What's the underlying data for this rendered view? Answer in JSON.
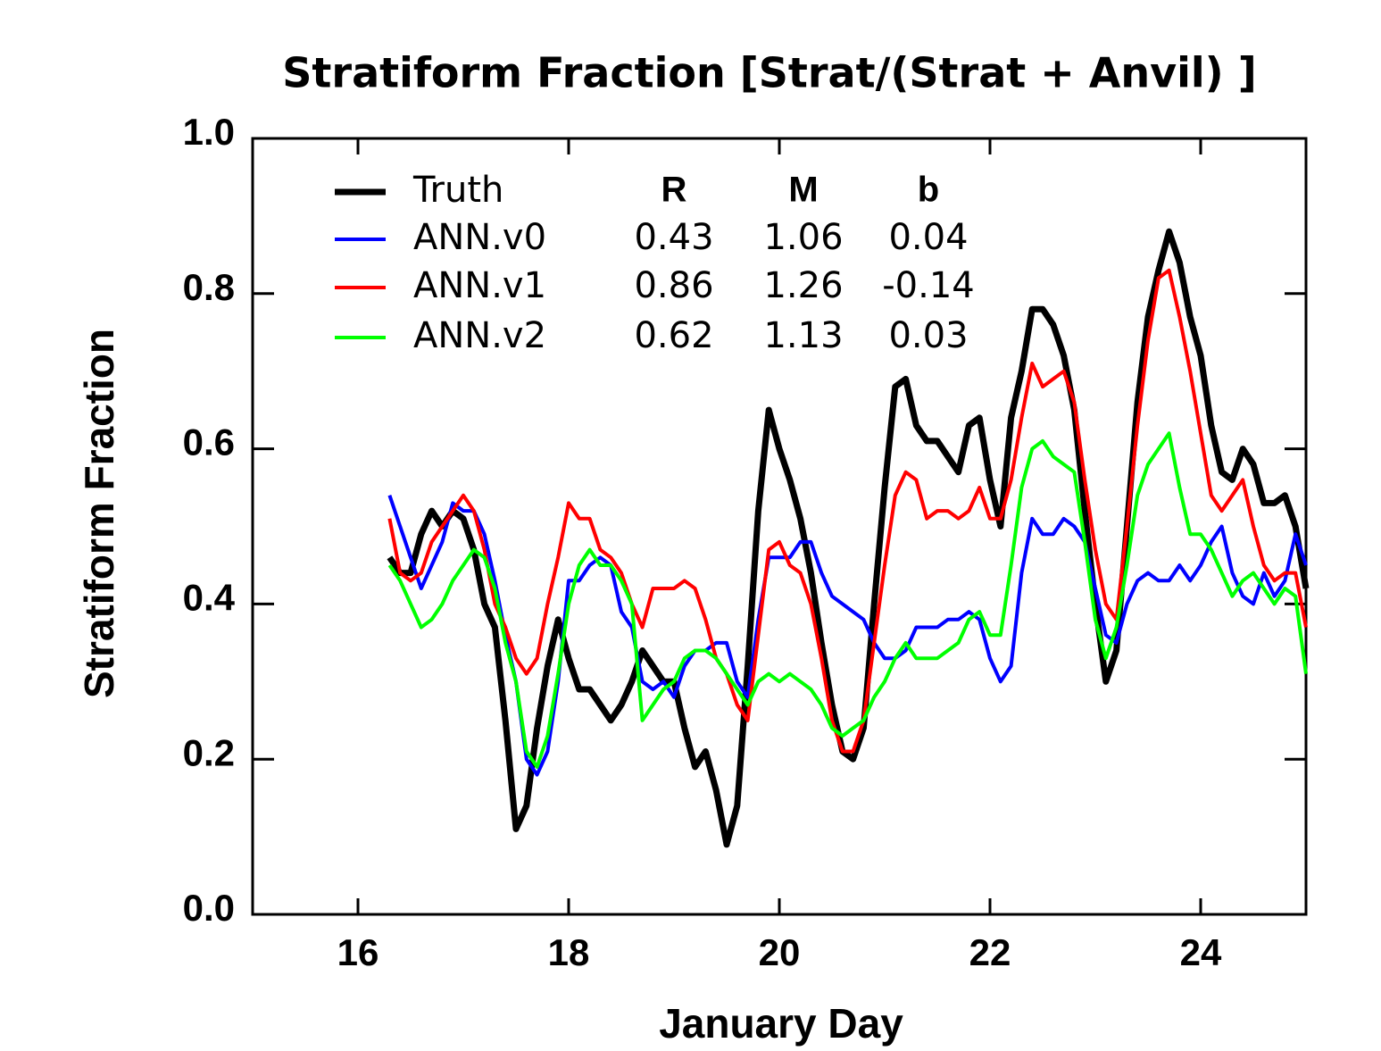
{
  "chart_data": {
    "type": "line",
    "title": "Stratiform Fraction  [Strat/(Strat + Anvil) ]",
    "xlabel": "January Day",
    "ylabel": "Stratiform Fraction",
    "xlim": [
      15,
      25
    ],
    "ylim": [
      0,
      1
    ],
    "xticks": [
      16,
      18,
      20,
      22,
      24
    ],
    "yticks": [
      {
        "value": 0,
        "label": "0.0"
      },
      0.2,
      0.4,
      0.6,
      0.8,
      {
        "value": 1,
        "label": "1.0"
      }
    ],
    "legend_columns": [
      "R",
      "M",
      "b"
    ],
    "legend_position": "upper left",
    "x": [
      16.3,
      16.4,
      16.5,
      16.6,
      16.7,
      16.8,
      16.9,
      17.0,
      17.1,
      17.2,
      17.3,
      17.4,
      17.5,
      17.6,
      17.7,
      17.8,
      17.9,
      18.0,
      18.1,
      18.2,
      18.3,
      18.4,
      18.5,
      18.6,
      18.7,
      18.8,
      18.9,
      19.0,
      19.1,
      19.2,
      19.3,
      19.4,
      19.5,
      19.6,
      19.7,
      19.8,
      19.9,
      20.0,
      20.1,
      20.2,
      20.3,
      20.4,
      20.5,
      20.6,
      20.7,
      20.8,
      20.9,
      21.0,
      21.1,
      21.2,
      21.3,
      21.4,
      21.5,
      21.6,
      21.7,
      21.8,
      21.9,
      22.0,
      22.1,
      22.2,
      22.3,
      22.4,
      22.5,
      22.6,
      22.7,
      22.8,
      22.9,
      23.0,
      23.1,
      23.2,
      23.3,
      23.4,
      23.5,
      23.6,
      23.7,
      23.8,
      23.9,
      24.0,
      24.1,
      24.2,
      24.3,
      24.4,
      24.5,
      24.6,
      24.7,
      24.8,
      24.9,
      25.0
    ],
    "series": [
      {
        "name": "Truth",
        "color": "#000000",
        "width": 7,
        "values": [
          0.46,
          0.44,
          0.44,
          0.49,
          0.52,
          0.5,
          0.52,
          0.51,
          0.47,
          0.4,
          0.37,
          0.25,
          0.11,
          0.14,
          0.24,
          0.32,
          0.38,
          0.33,
          0.29,
          0.29,
          0.27,
          0.25,
          0.27,
          0.3,
          0.34,
          0.32,
          0.3,
          0.3,
          0.24,
          0.19,
          0.21,
          0.16,
          0.09,
          0.14,
          0.32,
          0.52,
          0.65,
          0.6,
          0.56,
          0.51,
          0.44,
          0.35,
          0.27,
          0.21,
          0.2,
          0.24,
          0.4,
          0.55,
          0.68,
          0.69,
          0.63,
          0.61,
          0.61,
          0.59,
          0.57,
          0.63,
          0.64,
          0.56,
          0.5,
          0.64,
          0.7,
          0.78,
          0.78,
          0.76,
          0.72,
          0.65,
          0.52,
          0.4,
          0.3,
          0.34,
          0.5,
          0.66,
          0.77,
          0.83,
          0.88,
          0.84,
          0.77,
          0.72,
          0.63,
          0.57,
          0.56,
          0.6,
          0.58,
          0.53,
          0.53,
          0.54,
          0.5,
          0.42
        ]
      },
      {
        "name": "ANN.v0",
        "color": "#0000ff",
        "width": 4,
        "stats": [
          0.43,
          1.06,
          0.04
        ],
        "values": [
          0.54,
          0.5,
          0.46,
          0.42,
          0.45,
          0.48,
          0.53,
          0.52,
          0.52,
          0.49,
          0.43,
          0.36,
          0.3,
          0.2,
          0.18,
          0.21,
          0.3,
          0.43,
          0.43,
          0.45,
          0.46,
          0.45,
          0.39,
          0.37,
          0.3,
          0.29,
          0.3,
          0.28,
          0.32,
          0.34,
          0.34,
          0.35,
          0.35,
          0.3,
          0.28,
          0.38,
          0.46,
          0.46,
          0.46,
          0.48,
          0.48,
          0.44,
          0.41,
          0.4,
          0.39,
          0.38,
          0.35,
          0.33,
          0.33,
          0.34,
          0.37,
          0.37,
          0.37,
          0.38,
          0.38,
          0.39,
          0.38,
          0.33,
          0.3,
          0.32,
          0.44,
          0.51,
          0.49,
          0.49,
          0.51,
          0.5,
          0.48,
          0.42,
          0.36,
          0.35,
          0.4,
          0.43,
          0.44,
          0.43,
          0.43,
          0.45,
          0.43,
          0.45,
          0.48,
          0.5,
          0.44,
          0.41,
          0.4,
          0.44,
          0.41,
          0.43,
          0.49,
          0.45
        ]
      },
      {
        "name": "ANN.v1",
        "color": "#ff0000",
        "width": 4,
        "stats": [
          0.86,
          1.26,
          -0.14
        ],
        "values": [
          0.51,
          0.44,
          0.43,
          0.44,
          0.48,
          0.5,
          0.52,
          0.54,
          0.52,
          0.47,
          0.4,
          0.37,
          0.33,
          0.31,
          0.33,
          0.4,
          0.46,
          0.53,
          0.51,
          0.51,
          0.47,
          0.46,
          0.44,
          0.4,
          0.37,
          0.42,
          0.42,
          0.42,
          0.43,
          0.42,
          0.38,
          0.33,
          0.31,
          0.27,
          0.25,
          0.36,
          0.47,
          0.48,
          0.45,
          0.44,
          0.4,
          0.33,
          0.25,
          0.21,
          0.21,
          0.25,
          0.35,
          0.45,
          0.54,
          0.57,
          0.56,
          0.51,
          0.52,
          0.52,
          0.51,
          0.52,
          0.55,
          0.51,
          0.51,
          0.56,
          0.64,
          0.71,
          0.68,
          0.69,
          0.7,
          0.66,
          0.56,
          0.47,
          0.4,
          0.38,
          0.5,
          0.63,
          0.74,
          0.82,
          0.83,
          0.77,
          0.7,
          0.62,
          0.54,
          0.52,
          0.54,
          0.56,
          0.5,
          0.45,
          0.43,
          0.44,
          0.44,
          0.37
        ]
      },
      {
        "name": "ANN.v2",
        "color": "#00ff00",
        "width": 4,
        "stats": [
          0.62,
          1.13,
          0.03
        ],
        "values": [
          0.45,
          0.43,
          0.4,
          0.37,
          0.38,
          0.4,
          0.43,
          0.45,
          0.47,
          0.46,
          0.42,
          0.35,
          0.3,
          0.21,
          0.19,
          0.23,
          0.31,
          0.4,
          0.45,
          0.47,
          0.45,
          0.45,
          0.43,
          0.4,
          0.25,
          0.27,
          0.29,
          0.3,
          0.33,
          0.34,
          0.34,
          0.33,
          0.31,
          0.29,
          0.27,
          0.3,
          0.31,
          0.3,
          0.31,
          0.3,
          0.29,
          0.27,
          0.24,
          0.23,
          0.24,
          0.25,
          0.28,
          0.3,
          0.33,
          0.35,
          0.33,
          0.33,
          0.33,
          0.34,
          0.35,
          0.38,
          0.39,
          0.36,
          0.36,
          0.45,
          0.55,
          0.6,
          0.61,
          0.59,
          0.58,
          0.57,
          0.48,
          0.38,
          0.33,
          0.37,
          0.45,
          0.54,
          0.58,
          0.6,
          0.62,
          0.55,
          0.49,
          0.49,
          0.47,
          0.44,
          0.41,
          0.43,
          0.44,
          0.42,
          0.4,
          0.42,
          0.41,
          0.31
        ]
      }
    ]
  }
}
